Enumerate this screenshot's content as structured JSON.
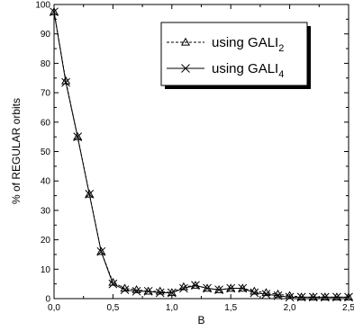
{
  "chart_data": {
    "type": "line",
    "xlabel": "B",
    "ylabel": "% of REGULAR orbits",
    "xlim": [
      0,
      2.5
    ],
    "ylim": [
      0,
      100
    ],
    "x_ticks": [
      0,
      0.5,
      1.0,
      1.5,
      2.0,
      2.5
    ],
    "x_tick_labels": [
      "0,0",
      "0,5",
      "1,0",
      "1,5",
      "2,0",
      "2,5"
    ],
    "y_ticks": [
      0,
      10,
      20,
      30,
      40,
      50,
      60,
      70,
      80,
      90,
      100
    ],
    "y_tick_labels": [
      "0",
      "10",
      "20",
      "30",
      "40",
      "50",
      "60",
      "70",
      "80",
      "90",
      "100"
    ],
    "grid": false,
    "legend_position": "top-right",
    "series": [
      {
        "name": "using GALI",
        "subscript": "2",
        "marker": "triangle",
        "line": "dashed",
        "x": [
          0.0,
          0.1,
          0.2,
          0.3,
          0.4,
          0.5,
          0.6,
          0.7,
          0.8,
          0.9,
          1.0,
          1.1,
          1.2,
          1.3,
          1.4,
          1.5,
          1.6,
          1.7,
          1.8,
          1.9,
          2.0,
          2.1,
          2.2,
          2.3,
          2.4,
          2.5
        ],
        "values": [
          97.5,
          74,
          55,
          35.5,
          16,
          5.5,
          3.5,
          3,
          2.5,
          2.5,
          2,
          4,
          4.5,
          3.5,
          3,
          3.5,
          3.5,
          2.5,
          2,
          1.5,
          1,
          0.5,
          0.5,
          0.5,
          0.5,
          0.5
        ]
      },
      {
        "name": "using GALI",
        "subscript": "4",
        "marker": "x",
        "line": "solid",
        "x": [
          0.0,
          0.1,
          0.2,
          0.3,
          0.4,
          0.5,
          0.6,
          0.7,
          0.8,
          0.9,
          1.0,
          1.1,
          1.2,
          1.3,
          1.4,
          1.5,
          1.6,
          1.7,
          1.8,
          1.9,
          2.0,
          2.1,
          2.2,
          2.3,
          2.4,
          2.5
        ],
        "values": [
          97.5,
          73.5,
          55,
          35.5,
          16,
          5,
          3,
          2.5,
          2.5,
          2,
          2,
          3.5,
          4.5,
          3.5,
          3,
          3.5,
          3.5,
          2,
          1.5,
          1,
          0.5,
          0.5,
          0.5,
          0.5,
          0.5,
          0.5
        ]
      }
    ]
  }
}
